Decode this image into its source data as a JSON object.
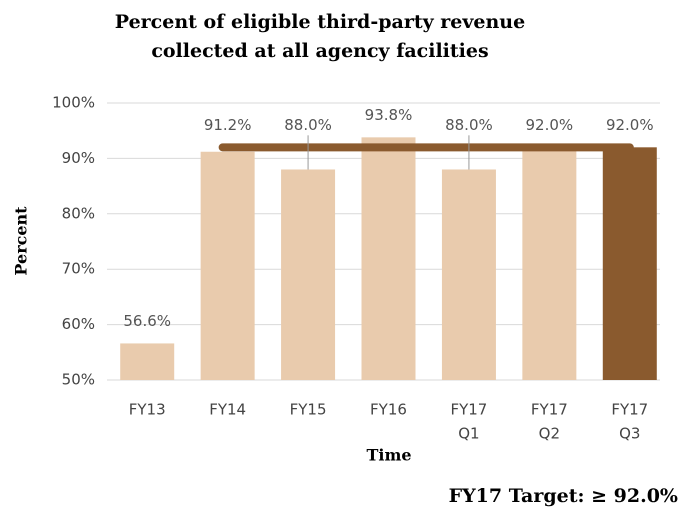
{
  "chart_data": {
    "type": "bar",
    "title": [
      "Percent of eligible third-party revenue",
      "collected at all agency facilities"
    ],
    "y_label": "Percent",
    "x_label": "Time",
    "footer": "FY17 Target: ≥ 92.0%",
    "categories": [
      [
        "FY13"
      ],
      [
        "FY14"
      ],
      [
        "FY15"
      ],
      [
        "FY16"
      ],
      [
        "FY17",
        "Q1"
      ],
      [
        "FY17",
        "Q2"
      ],
      [
        "FY17",
        "Q3"
      ]
    ],
    "values": [
      56.6,
      91.2,
      88.0,
      93.8,
      88.0,
      92.0,
      92.0
    ],
    "value_labels": [
      "56.6%",
      "91.2%",
      "88.0%",
      "93.8%",
      "88.0%",
      "92.0%",
      "92.0%"
    ],
    "colors": [
      "#e9cbad",
      "#e9cbad",
      "#e9cbad",
      "#e9cbad",
      "#e9cbad",
      "#e9cbad",
      "#8a5a2e"
    ],
    "target_value": 92,
    "target_color": "#8a5a2e",
    "ylim": [
      50,
      100
    ],
    "yticks": [
      {
        "value": 50,
        "label": "50%"
      },
      {
        "value": 60,
        "label": "60%"
      },
      {
        "value": 70,
        "label": "70%"
      },
      {
        "value": 80,
        "label": "80%"
      },
      {
        "value": 90,
        "label": "90%"
      },
      {
        "value": 100,
        "label": "100%"
      }
    ],
    "grid": true
  }
}
